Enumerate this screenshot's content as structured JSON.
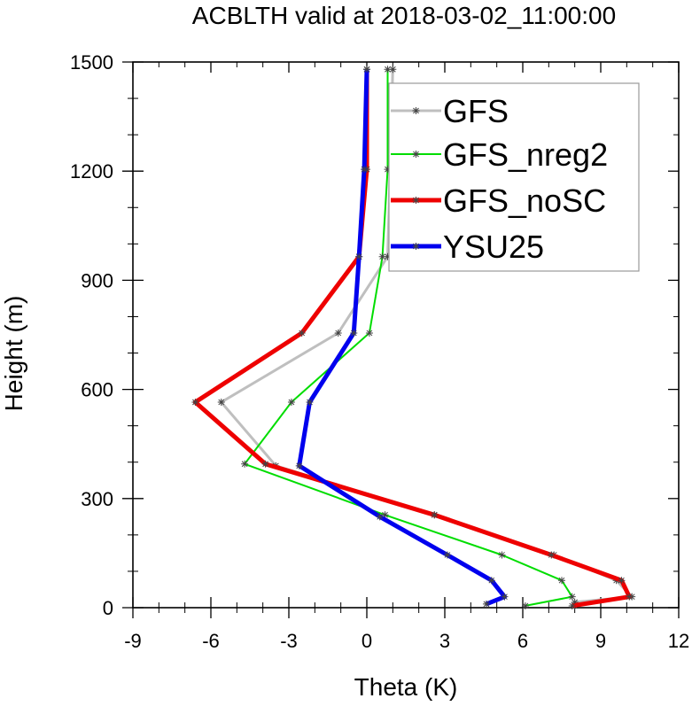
{
  "chart_data": {
    "type": "line",
    "title": "ACBLTH valid at 2018-03-02_11:00:00",
    "xlabel": "Theta (K)",
    "ylabel": "Height (m)",
    "xlim": [
      -9,
      12
    ],
    "ylim": [
      0,
      1500
    ],
    "xticks": [
      -9,
      -6,
      -3,
      0,
      3,
      6,
      9,
      12
    ],
    "yticks": [
      0,
      300,
      600,
      900,
      1200,
      1500
    ],
    "xtick_labels": [
      "-9",
      "-6",
      "-3",
      "0",
      "3",
      "6",
      "9",
      "12"
    ],
    "ytick_labels": [
      "0",
      "300",
      "600",
      "900",
      "1200",
      "1500"
    ],
    "grid": false,
    "legend_position": "top-right",
    "series": [
      {
        "name": "GFS",
        "color": "#bfbfbf",
        "points": [
          [
            8.0,
            5
          ],
          [
            8.0,
            15
          ],
          [
            10.2,
            30
          ],
          [
            9.6,
            75
          ],
          [
            7.2,
            145
          ],
          [
            2.6,
            255
          ],
          [
            -3.5,
            390
          ],
          [
            -5.6,
            565
          ],
          [
            -1.1,
            755
          ],
          [
            0.8,
            965
          ],
          [
            0.9,
            1205
          ],
          [
            1.0,
            1480
          ]
        ]
      },
      {
        "name": "GFS_nreg2",
        "color": "#00dd00",
        "points": [
          [
            6.1,
            5
          ],
          [
            7.9,
            30
          ],
          [
            7.5,
            75
          ],
          [
            5.2,
            145
          ],
          [
            0.7,
            255
          ],
          [
            -4.7,
            395
          ],
          [
            -2.9,
            565
          ],
          [
            0.1,
            755
          ],
          [
            0.6,
            965
          ],
          [
            0.8,
            1205
          ],
          [
            0.8,
            1480
          ]
        ]
      },
      {
        "name": "GFS_noSC",
        "color": "#ee0000",
        "points": [
          [
            7.9,
            5
          ],
          [
            10.1,
            30
          ],
          [
            9.8,
            75
          ],
          [
            7.1,
            145
          ],
          [
            2.6,
            255
          ],
          [
            -3.9,
            395
          ],
          [
            -6.6,
            565
          ],
          [
            -2.5,
            755
          ],
          [
            -0.3,
            965
          ],
          [
            0.0,
            1205
          ],
          [
            0.0,
            1480
          ]
        ]
      },
      {
        "name": "YSU25",
        "color": "#0000ee",
        "points": [
          [
            4.6,
            10
          ],
          [
            5.3,
            30
          ],
          [
            4.8,
            75
          ],
          [
            3.1,
            145
          ],
          [
            0.5,
            250
          ],
          [
            -2.6,
            390
          ],
          [
            -2.2,
            565
          ],
          [
            -0.5,
            755
          ],
          [
            -0.3,
            965
          ],
          [
            -0.1,
            1205
          ],
          [
            0.0,
            1480
          ]
        ]
      }
    ]
  }
}
